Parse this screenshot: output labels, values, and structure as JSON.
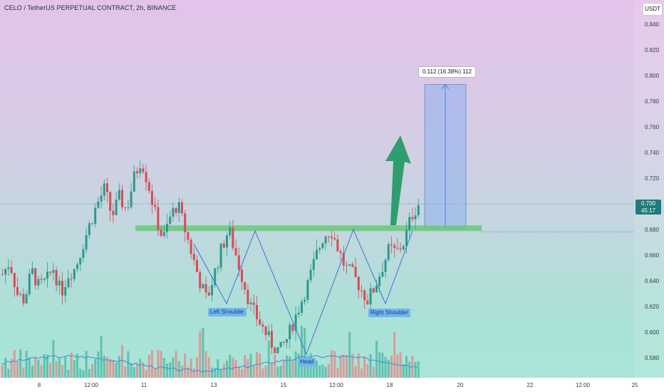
{
  "header": {
    "title": "CELO / TetherUS PERPETUAL CONTRACT, 2h, BINANCE",
    "currency": "USDT"
  },
  "price_label": {
    "price": "0.700",
    "countdown": "45:17"
  },
  "measure_label": "0.112 (16.38%) 112",
  "annotations": {
    "left_shoulder": "Left Shoulder",
    "head": "Head",
    "right_shoulder": "Right Shoulder"
  },
  "colors": {
    "up": "#2a9a8c",
    "down": "#d94a55",
    "volume_up": "#4fb8a6",
    "volume_down": "#e48a8a",
    "neckline": "#6cc87a",
    "arrow": "#2f9e6e",
    "target_box": "#8fb0ee",
    "pattern_line": "#3f73d4",
    "ma_line": "#4a86d8"
  },
  "chart_data": {
    "type": "candlestick",
    "title": "CELO / TetherUS PERPETUAL CONTRACT, 2h, BINANCE",
    "y_axis": {
      "ticks": [
        "0.840",
        "0.820",
        "0.800",
        "0.780",
        "0.760",
        "0.740",
        "0.720",
        "0.700",
        "0.680",
        "0.660",
        "0.640",
        "0.620",
        "0.600",
        "0.580"
      ],
      "range": [
        0.56,
        0.85
      ]
    },
    "x_axis": {
      "ticks": [
        "8",
        "12:00",
        "11",
        "13",
        "15",
        "12:00",
        "18",
        "20",
        "22",
        "12:00",
        "25"
      ]
    },
    "last_price": 0.7,
    "neckline": 0.681,
    "target": {
      "from": 0.681,
      "to": 0.793,
      "change": "0.112 (16.38%) 112"
    },
    "close_path": [
      0.645,
      0.655,
      0.63,
      0.625,
      0.648,
      0.635,
      0.64,
      0.65,
      0.63,
      0.645,
      0.65,
      0.668,
      0.685,
      0.7,
      0.712,
      0.69,
      0.705,
      0.695,
      0.72,
      0.735,
      0.715,
      0.69,
      0.672,
      0.69,
      0.7,
      0.68,
      0.66,
      0.64,
      0.625,
      0.645,
      0.665,
      0.68,
      0.66,
      0.64,
      0.62,
      0.61,
      0.6,
      0.59,
      0.585,
      0.595,
      0.61,
      0.625,
      0.64,
      0.66,
      0.675,
      0.68,
      0.665,
      0.65,
      0.645,
      0.635,
      0.625,
      0.635,
      0.65,
      0.665,
      0.662,
      0.67,
      0.69,
      0.7
    ]
  }
}
